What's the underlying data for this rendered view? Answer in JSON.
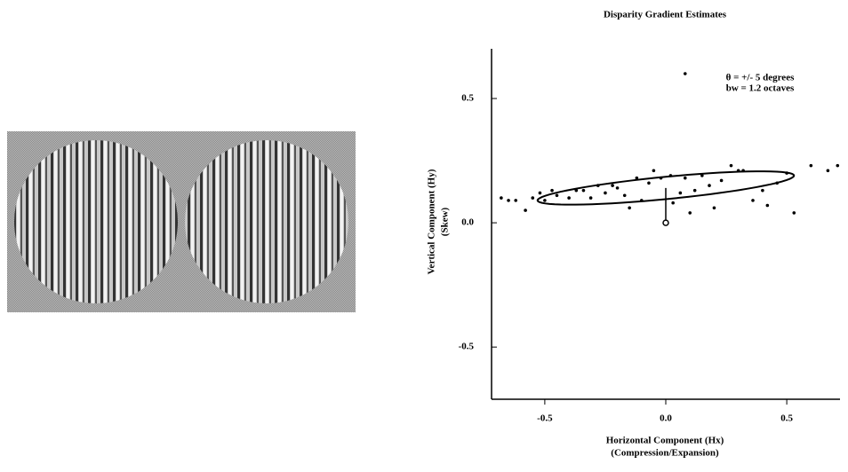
{
  "chart_data": {
    "type": "scatter",
    "title": "Disparity Gradient Estimates",
    "x_label": "Horizontal Component (Hx)",
    "x_sublabel": "(Compression/Expansion)",
    "y_label": "Vertical Component (Hy)",
    "y_sublabel": "(Skew)",
    "annotations": [
      "θ = +/- 5 degrees",
      "bw = 1.2 octaves"
    ],
    "xlim": [
      -0.72,
      0.72
    ],
    "ylim": [
      -0.71,
      0.7
    ],
    "xticks": [
      -0.5,
      {
        "value": 0,
        "label": "0.0"
      },
      0.5
    ],
    "yticks": [
      -0.5,
      {
        "value": 0,
        "label": "0.0"
      },
      0.5
    ],
    "color": "#000000",
    "x": [
      -0.68,
      -0.65,
      -0.62,
      -0.58,
      -0.55,
      -0.52,
      -0.5,
      -0.47,
      -0.45,
      -0.4,
      -0.37,
      -0.34,
      -0.31,
      -0.28,
      -0.25,
      -0.22,
      -0.2,
      -0.17,
      -0.15,
      -0.12,
      -0.1,
      -0.07,
      -0.05,
      -0.02,
      0.02,
      0.03,
      0.06,
      0.08,
      0.1,
      0.12,
      0.15,
      0.18,
      0.2,
      0.23,
      0.27,
      0.3,
      0.32,
      0.36,
      0.4,
      0.42,
      0.46,
      0.5,
      0.53,
      0.6,
      0.67,
      0.71,
      0.08
    ],
    "y": [
      0.1,
      0.09,
      0.09,
      0.05,
      0.1,
      0.12,
      0.09,
      0.13,
      0.11,
      0.1,
      0.13,
      0.13,
      0.1,
      0.15,
      0.12,
      0.15,
      0.14,
      0.11,
      0.06,
      0.18,
      0.09,
      0.16,
      0.21,
      0.18,
      0.19,
      0.08,
      0.12,
      0.18,
      0.04,
      0.13,
      0.19,
      0.15,
      0.06,
      0.17,
      0.23,
      0.21,
      0.21,
      0.09,
      0.13,
      0.07,
      0.16,
      0.2,
      0.04,
      0.23,
      0.21,
      0.23,
      0.6
    ],
    "ellipse": {
      "cx": 0,
      "cy": 0.14,
      "rx": 0.53,
      "ry": 0.045,
      "slope": 0.094
    }
  }
}
